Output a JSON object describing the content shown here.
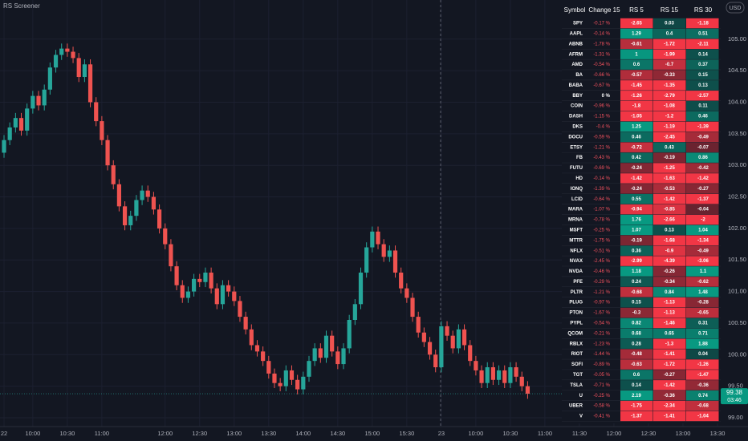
{
  "title": "RS Screener",
  "chart_data": {
    "type": "candlestick",
    "currency": "USD",
    "x": [
      0,
      1,
      2,
      3,
      4,
      5,
      6,
      7,
      8,
      9,
      10,
      11,
      12,
      13,
      14,
      15,
      16,
      17,
      18,
      19,
      20,
      21,
      22,
      23,
      24,
      25,
      26,
      27,
      28,
      29,
      30,
      31,
      32,
      33,
      34,
      35,
      36,
      37,
      38,
      39,
      40,
      41,
      42,
      43,
      44,
      45,
      46,
      47,
      48,
      49,
      50,
      51,
      52,
      53,
      54,
      55,
      56,
      57,
      58,
      59,
      60,
      61,
      62,
      63,
      64,
      65,
      66,
      67,
      68,
      69,
      70,
      71,
      72,
      73,
      74,
      75,
      76,
      77,
      78,
      79,
      80,
      81,
      82,
      83,
      84,
      85,
      86,
      87,
      88,
      89,
      90,
      91
    ],
    "open": [
      103.2,
      103.4,
      103.6,
      103.75,
      103.55,
      103.9,
      104.1,
      103.95,
      104.2,
      104.55,
      104.75,
      104.85,
      104.8,
      104.7,
      104.4,
      104.6,
      104.0,
      103.7,
      103.4,
      103.0,
      102.7,
      102.35,
      102.05,
      102.2,
      102.45,
      102.6,
      102.5,
      102.3,
      102.0,
      101.75,
      101.4,
      101.1,
      100.9,
      101.0,
      101.2,
      101.15,
      101.3,
      101.05,
      100.8,
      101.1,
      101.0,
      100.85,
      100.6,
      100.4,
      100.15,
      100.05,
      99.9,
      99.7,
      99.55,
      99.5,
      99.75,
      99.6,
      99.45,
      99.65,
      99.9,
      100.1,
      99.95,
      100.3,
      100.05,
      99.85,
      100.1,
      100.55,
      100.8,
      101.3,
      101.7,
      101.95,
      101.75,
      101.55,
      101.65,
      101.3,
      101.05,
      100.9,
      100.6,
      100.35,
      100.2,
      100.0,
      99.8,
      100.45,
      100.3,
      100.1,
      100.4,
      100.15,
      99.9,
      99.75,
      99.55,
      99.8,
      99.6,
      99.75,
      99.55,
      99.8,
      99.65,
      99.5
    ],
    "high": [
      103.48,
      103.68,
      103.83,
      103.83,
      103.98,
      104.18,
      104.18,
      104.28,
      104.63,
      104.83,
      104.93,
      104.93,
      104.88,
      104.78,
      104.68,
      104.68,
      104.08,
      103.78,
      103.48,
      103.08,
      102.78,
      102.43,
      102.28,
      102.53,
      102.68,
      102.68,
      102.58,
      102.38,
      102.08,
      101.83,
      101.48,
      101.18,
      101.08,
      101.28,
      101.28,
      101.38,
      101.38,
      101.13,
      101.18,
      101.18,
      101.08,
      100.93,
      100.68,
      100.48,
      100.23,
      100.13,
      99.98,
      99.78,
      99.63,
      99.83,
      99.83,
      99.68,
      99.73,
      99.98,
      100.18,
      100.18,
      100.38,
      100.38,
      100.13,
      100.18,
      100.63,
      100.88,
      101.38,
      101.78,
      102.03,
      102.03,
      101.83,
      101.73,
      101.73,
      101.38,
      101.13,
      100.98,
      100.68,
      100.43,
      100.28,
      100.08,
      100.53,
      100.53,
      100.38,
      100.48,
      100.48,
      100.23,
      99.98,
      99.83,
      99.88,
      99.88,
      99.83,
      99.83,
      99.88,
      99.88,
      99.73,
      99.58
    ],
    "low": [
      103.12,
      103.32,
      103.52,
      103.47,
      103.47,
      103.82,
      103.87,
      103.87,
      104.12,
      104.47,
      104.67,
      104.72,
      104.62,
      104.32,
      104.32,
      103.92,
      103.62,
      103.32,
      102.92,
      102.62,
      102.27,
      101.97,
      101.97,
      102.12,
      102.37,
      102.42,
      102.22,
      101.92,
      101.67,
      101.32,
      101.02,
      100.82,
      100.82,
      100.92,
      101.07,
      101.07,
      100.97,
      100.72,
      100.72,
      100.92,
      100.77,
      100.52,
      100.32,
      100.07,
      99.97,
      99.82,
      99.62,
      99.47,
      99.42,
      99.42,
      99.52,
      99.37,
      99.37,
      99.57,
      99.82,
      99.87,
      99.87,
      99.97,
      99.77,
      99.77,
      100.02,
      100.47,
      100.72,
      101.22,
      101.62,
      101.67,
      101.47,
      101.47,
      101.22,
      100.97,
      100.82,
      100.52,
      100.27,
      100.12,
      99.92,
      99.72,
      99.72,
      100.22,
      100.02,
      100.02,
      100.07,
      99.82,
      99.67,
      99.47,
      99.47,
      99.52,
      99.52,
      99.47,
      99.47,
      99.57,
      99.42,
      99.3
    ],
    "close": [
      103.4,
      103.6,
      103.75,
      103.55,
      103.9,
      104.1,
      103.95,
      104.2,
      104.55,
      104.75,
      104.85,
      104.8,
      104.7,
      104.4,
      104.6,
      104.0,
      103.7,
      103.4,
      103.0,
      102.7,
      102.35,
      102.05,
      102.2,
      102.45,
      102.6,
      102.5,
      102.3,
      102.0,
      101.75,
      101.4,
      101.1,
      100.9,
      101.0,
      101.2,
      101.15,
      101.3,
      101.05,
      100.8,
      101.1,
      101.0,
      100.85,
      100.6,
      100.4,
      100.15,
      100.05,
      99.9,
      99.7,
      99.55,
      99.5,
      99.75,
      99.6,
      99.45,
      99.65,
      99.9,
      100.1,
      99.95,
      100.3,
      100.05,
      99.85,
      100.1,
      100.55,
      100.8,
      101.3,
      101.7,
      101.95,
      101.75,
      101.55,
      101.65,
      101.3,
      101.05,
      100.9,
      100.6,
      100.35,
      100.2,
      100.0,
      99.8,
      100.45,
      100.3,
      100.1,
      100.4,
      100.15,
      99.9,
      99.75,
      99.55,
      99.8,
      99.6,
      99.75,
      99.55,
      99.8,
      99.65,
      99.5,
      99.38
    ],
    "colors": {
      "up": "#26a69a",
      "down": "#ef5350"
    },
    "xlim": [
      -0.7,
      129.3
    ],
    "ylim": [
      98.86,
      105.62
    ],
    "xticks": [
      {
        "value": 0,
        "label": "22"
      },
      {
        "value": 5,
        "label": "10:00"
      },
      {
        "value": 11,
        "label": "10:30"
      },
      {
        "value": 17,
        "label": "11:00"
      },
      {
        "value": 28,
        "label": "12:00"
      },
      {
        "value": 34,
        "label": "12:30"
      },
      {
        "value": 40,
        "label": "13:00"
      },
      {
        "value": 46,
        "label": "13:30"
      },
      {
        "value": 52,
        "label": "14:00"
      },
      {
        "value": 58,
        "label": "14:30"
      },
      {
        "value": 64,
        "label": "15:00"
      },
      {
        "value": 70,
        "label": "15:30"
      },
      {
        "value": 76,
        "label": "23"
      },
      {
        "value": 82,
        "label": "10:00"
      },
      {
        "value": 88,
        "label": "10:30"
      },
      {
        "value": 94,
        "label": "11:00"
      },
      {
        "value": 100,
        "label": "11:30"
      },
      {
        "value": 106,
        "label": "12:00"
      },
      {
        "value": 112,
        "label": "12:30"
      },
      {
        "value": 118,
        "label": "13:00"
      },
      {
        "value": 124,
        "label": "13:30"
      }
    ],
    "yticks": [
      {
        "value": 99,
        "label": "99.00"
      },
      {
        "value": 99.5,
        "label": "99.50"
      },
      {
        "value": 100,
        "label": "100.00"
      },
      {
        "value": 100.5,
        "label": "100.50"
      },
      {
        "value": 101,
        "label": "101.00"
      },
      {
        "value": 101.5,
        "label": "101.50"
      },
      {
        "value": 102,
        "label": "102.00"
      },
      {
        "value": 102.5,
        "label": "102.50"
      },
      {
        "value": 103,
        "label": "103.00"
      },
      {
        "value": 103.5,
        "label": "103.50"
      },
      {
        "value": 104,
        "label": "104.00"
      },
      {
        "value": 104.5,
        "label": "104.50"
      },
      {
        "value": 105,
        "label": "105.00"
      }
    ],
    "grid": true,
    "last_price": 99.38,
    "countdown": "03:46"
  },
  "screener": {
    "columns": [
      "Symbol",
      "Change 15",
      "RS 5",
      "RS 15",
      "RS 30"
    ],
    "rows": [
      [
        "SPY",
        "-0.17 %",
        -2.65,
        0.03,
        -1.18
      ],
      [
        "AAPL",
        "-0.14 %",
        1.29,
        0.4,
        0.51
      ],
      [
        "ABNB",
        "-1.78 %",
        -0.61,
        -1.72,
        -2.11
      ],
      [
        "AFRM",
        "-1.31 %",
        1,
        -1.99,
        0.14
      ],
      [
        "AMD",
        "-0.54 %",
        0.6,
        -0.7,
        0.37
      ],
      [
        "BA",
        "-0.66 %",
        -0.57,
        -0.33,
        0.15
      ],
      [
        "BABA",
        "-0.67 %",
        -1.45,
        -1.35,
        0.13
      ],
      [
        "BBY",
        "0 %",
        -1.26,
        -2.79,
        -2.57
      ],
      [
        "COIN",
        "-0.96 %",
        -1.8,
        -1.08,
        0.11
      ],
      [
        "DASH",
        "-1.15 %",
        -1.05,
        -1.2,
        0.46
      ],
      [
        "DKS",
        "-0.4 %",
        1.25,
        -1.19,
        -1.39
      ],
      [
        "DOCU",
        "-0.59 %",
        0.46,
        -2.45,
        -0.49
      ],
      [
        "ETSY",
        "-1.21 %",
        -0.72,
        0.43,
        -0.07
      ],
      [
        "FB",
        "-0.43 %",
        0.42,
        -0.19,
        0.86
      ],
      [
        "FUTU",
        "-0.69 %",
        -0.24,
        -1.25,
        -0.42
      ],
      [
        "HD",
        "-0.14 %",
        -1.42,
        -1.63,
        -1.42
      ],
      [
        "IONQ",
        "-1.39 %",
        -0.24,
        -0.53,
        -0.27
      ],
      [
        "LCID",
        "-0.64 %",
        0.55,
        -1.42,
        -1.37
      ],
      [
        "MARA",
        "-1.07 %",
        -0.94,
        -0.85,
        -0.04
      ],
      [
        "MRNA",
        "-0.78 %",
        1.76,
        -2.66,
        -2
      ],
      [
        "MSFT",
        "-0.25 %",
        1.07,
        0.13,
        1.04
      ],
      [
        "MTTR",
        "-1.75 %",
        -0.19,
        -1.68,
        -1.34
      ],
      [
        "NFLX",
        "-0.51 %",
        0.36,
        -0.9,
        -0.49
      ],
      [
        "NVAX",
        "-2.45 %",
        -2.99,
        -4.39,
        -3.06
      ],
      [
        "NVDA",
        "-0.46 %",
        1.18,
        -0.26,
        1.1
      ],
      [
        "PFE",
        "-0.29 %",
        0.24,
        -0.34,
        -0.62
      ],
      [
        "PLTR",
        "-1.21 %",
        -0.68,
        0.84,
        1.48
      ],
      [
        "PLUG",
        "-0.97 %",
        0.15,
        -1.13,
        -0.28
      ],
      [
        "PTON",
        "-1.67 %",
        -0.3,
        -1.13,
        -0.65
      ],
      [
        "PYPL",
        "-0.54 %",
        0.82,
        -1.46,
        0.31
      ],
      [
        "QCOM",
        "-0.21 %",
        0.68,
        0.65,
        0.71
      ],
      [
        "RBLX",
        "-1.23 %",
        0.28,
        -1.3,
        1.88
      ],
      [
        "RIOT",
        "-1.44 %",
        -0.48,
        -1.41,
        0.04
      ],
      [
        "SOFI",
        "-0.89 %",
        -0.63,
        -1.72,
        -1.26
      ],
      [
        "TGT",
        "-0.05 %",
        0.6,
        -0.27,
        -1.47
      ],
      [
        "TSLA",
        "-0.71 %",
        0.14,
        -1.42,
        -0.36
      ],
      [
        "U",
        "-0.25 %",
        2.19,
        -0.36,
        0.74
      ],
      [
        "UBER",
        "-0.58 %",
        -1.75,
        -2.34,
        -0.68
      ],
      [
        "V",
        "-0.41 %",
        -1.37,
        -1.41,
        -1.04
      ]
    ]
  }
}
